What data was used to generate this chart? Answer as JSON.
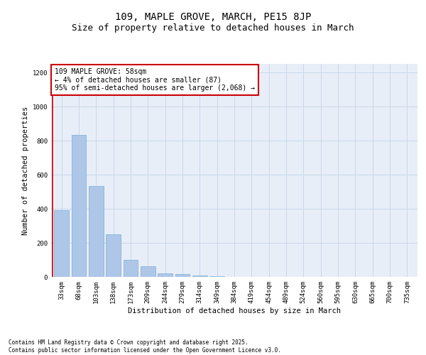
{
  "title": "109, MAPLE GROVE, MARCH, PE15 8JP",
  "subtitle": "Size of property relative to detached houses in March",
  "xlabel": "Distribution of detached houses by size in March",
  "ylabel": "Number of detached properties",
  "categories": [
    "33sqm",
    "68sqm",
    "103sqm",
    "138sqm",
    "173sqm",
    "209sqm",
    "244sqm",
    "279sqm",
    "314sqm",
    "349sqm",
    "384sqm",
    "419sqm",
    "454sqm",
    "489sqm",
    "524sqm",
    "560sqm",
    "595sqm",
    "630sqm",
    "665sqm",
    "700sqm",
    "735sqm"
  ],
  "values": [
    390,
    835,
    535,
    248,
    100,
    62,
    22,
    18,
    10,
    5,
    0,
    0,
    0,
    0,
    0,
    0,
    0,
    0,
    0,
    0,
    0
  ],
  "bar_color": "#aec6e8",
  "bar_edge_color": "#7aaed6",
  "grid_color": "#c8d8e8",
  "background_color": "#e8eef8",
  "annotation_box_text": "109 MAPLE GROVE: 58sqm\n← 4% of detached houses are smaller (87)\n95% of semi-detached houses are larger (2,068) →",
  "annotation_box_color": "#ffffff",
  "annotation_box_edge_color": "#cc0000",
  "vline_color": "#cc0000",
  "ylim": [
    0,
    1250
  ],
  "yticks": [
    0,
    200,
    400,
    600,
    800,
    1000,
    1200
  ],
  "footnote": "Contains HM Land Registry data © Crown copyright and database right 2025.\nContains public sector information licensed under the Open Government Licence v3.0.",
  "title_fontsize": 10,
  "subtitle_fontsize": 9,
  "axis_label_fontsize": 7.5,
  "tick_fontsize": 6.5,
  "annotation_fontsize": 7,
  "footnote_fontsize": 5.5
}
